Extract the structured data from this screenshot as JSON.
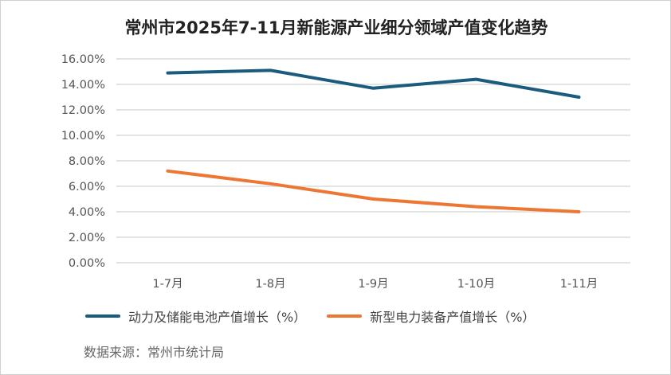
{
  "chart_data": {
    "type": "line",
    "title": "常州市2025年7-11月新能源产业细分领域产值变化趋势",
    "categories": [
      "1-7月",
      "1-8月",
      "1-9月",
      "1-10月",
      "1-11月"
    ],
    "series": [
      {
        "name": "动力及储能电池产值增长（%）",
        "color": "#1a5b7e",
        "values": [
          14.9,
          15.1,
          13.7,
          14.4,
          13.0
        ]
      },
      {
        "name": "新型电力装备产值增长（%）",
        "color": "#ed7633",
        "values": [
          7.2,
          6.2,
          5.0,
          4.4,
          4.0
        ]
      }
    ],
    "ylim": [
      0,
      16
    ],
    "yticks": [
      "0.00%",
      "2.00%",
      "4.00%",
      "6.00%",
      "8.00%",
      "10.00%",
      "12.00%",
      "14.00%",
      "16.00%"
    ],
    "grid": true,
    "legend": "bottom",
    "xlabel": "",
    "ylabel": ""
  },
  "source": "数据来源：常州市统计局"
}
